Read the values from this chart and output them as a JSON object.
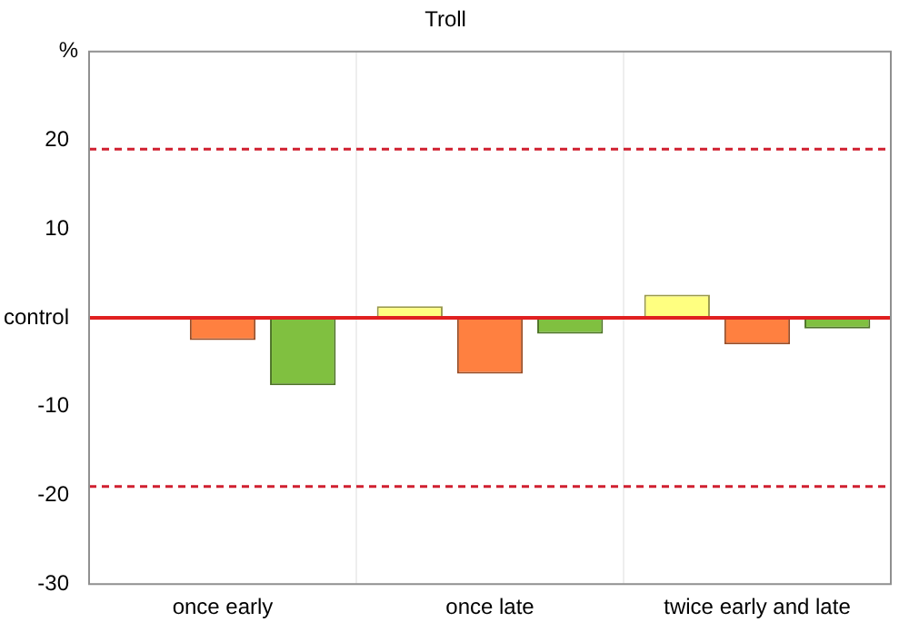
{
  "chart_data": {
    "type": "bar",
    "title": "Troll",
    "ylabel": "%",
    "categories": [
      "once early",
      "once late",
      "twice early and late"
    ],
    "series": [
      {
        "color": "#ffff80",
        "values": [
          null,
          1.3,
          2.6
        ]
      },
      {
        "color": "#ff8040",
        "values": [
          -2.5,
          -6.3,
          -3.0
        ]
      },
      {
        "color": "#80c040",
        "values": [
          -7.6,
          -1.8,
          -1.2
        ]
      }
    ],
    "ylim": [
      -30,
      30
    ],
    "yticks": [
      -30,
      -20,
      -10,
      {
        "value": 0,
        "label": "control"
      },
      10,
      20
    ],
    "grid": "x",
    "legend": false,
    "ref_lines": [
      {
        "axis": "y",
        "value": 0,
        "color": "#e02020",
        "line_style": "solid"
      },
      {
        "axis": "y",
        "value": 19,
        "color": "#d02030",
        "line_style": "dashed"
      },
      {
        "axis": "y",
        "value": -19,
        "color": "#d02030",
        "line_style": "dashed"
      }
    ]
  }
}
